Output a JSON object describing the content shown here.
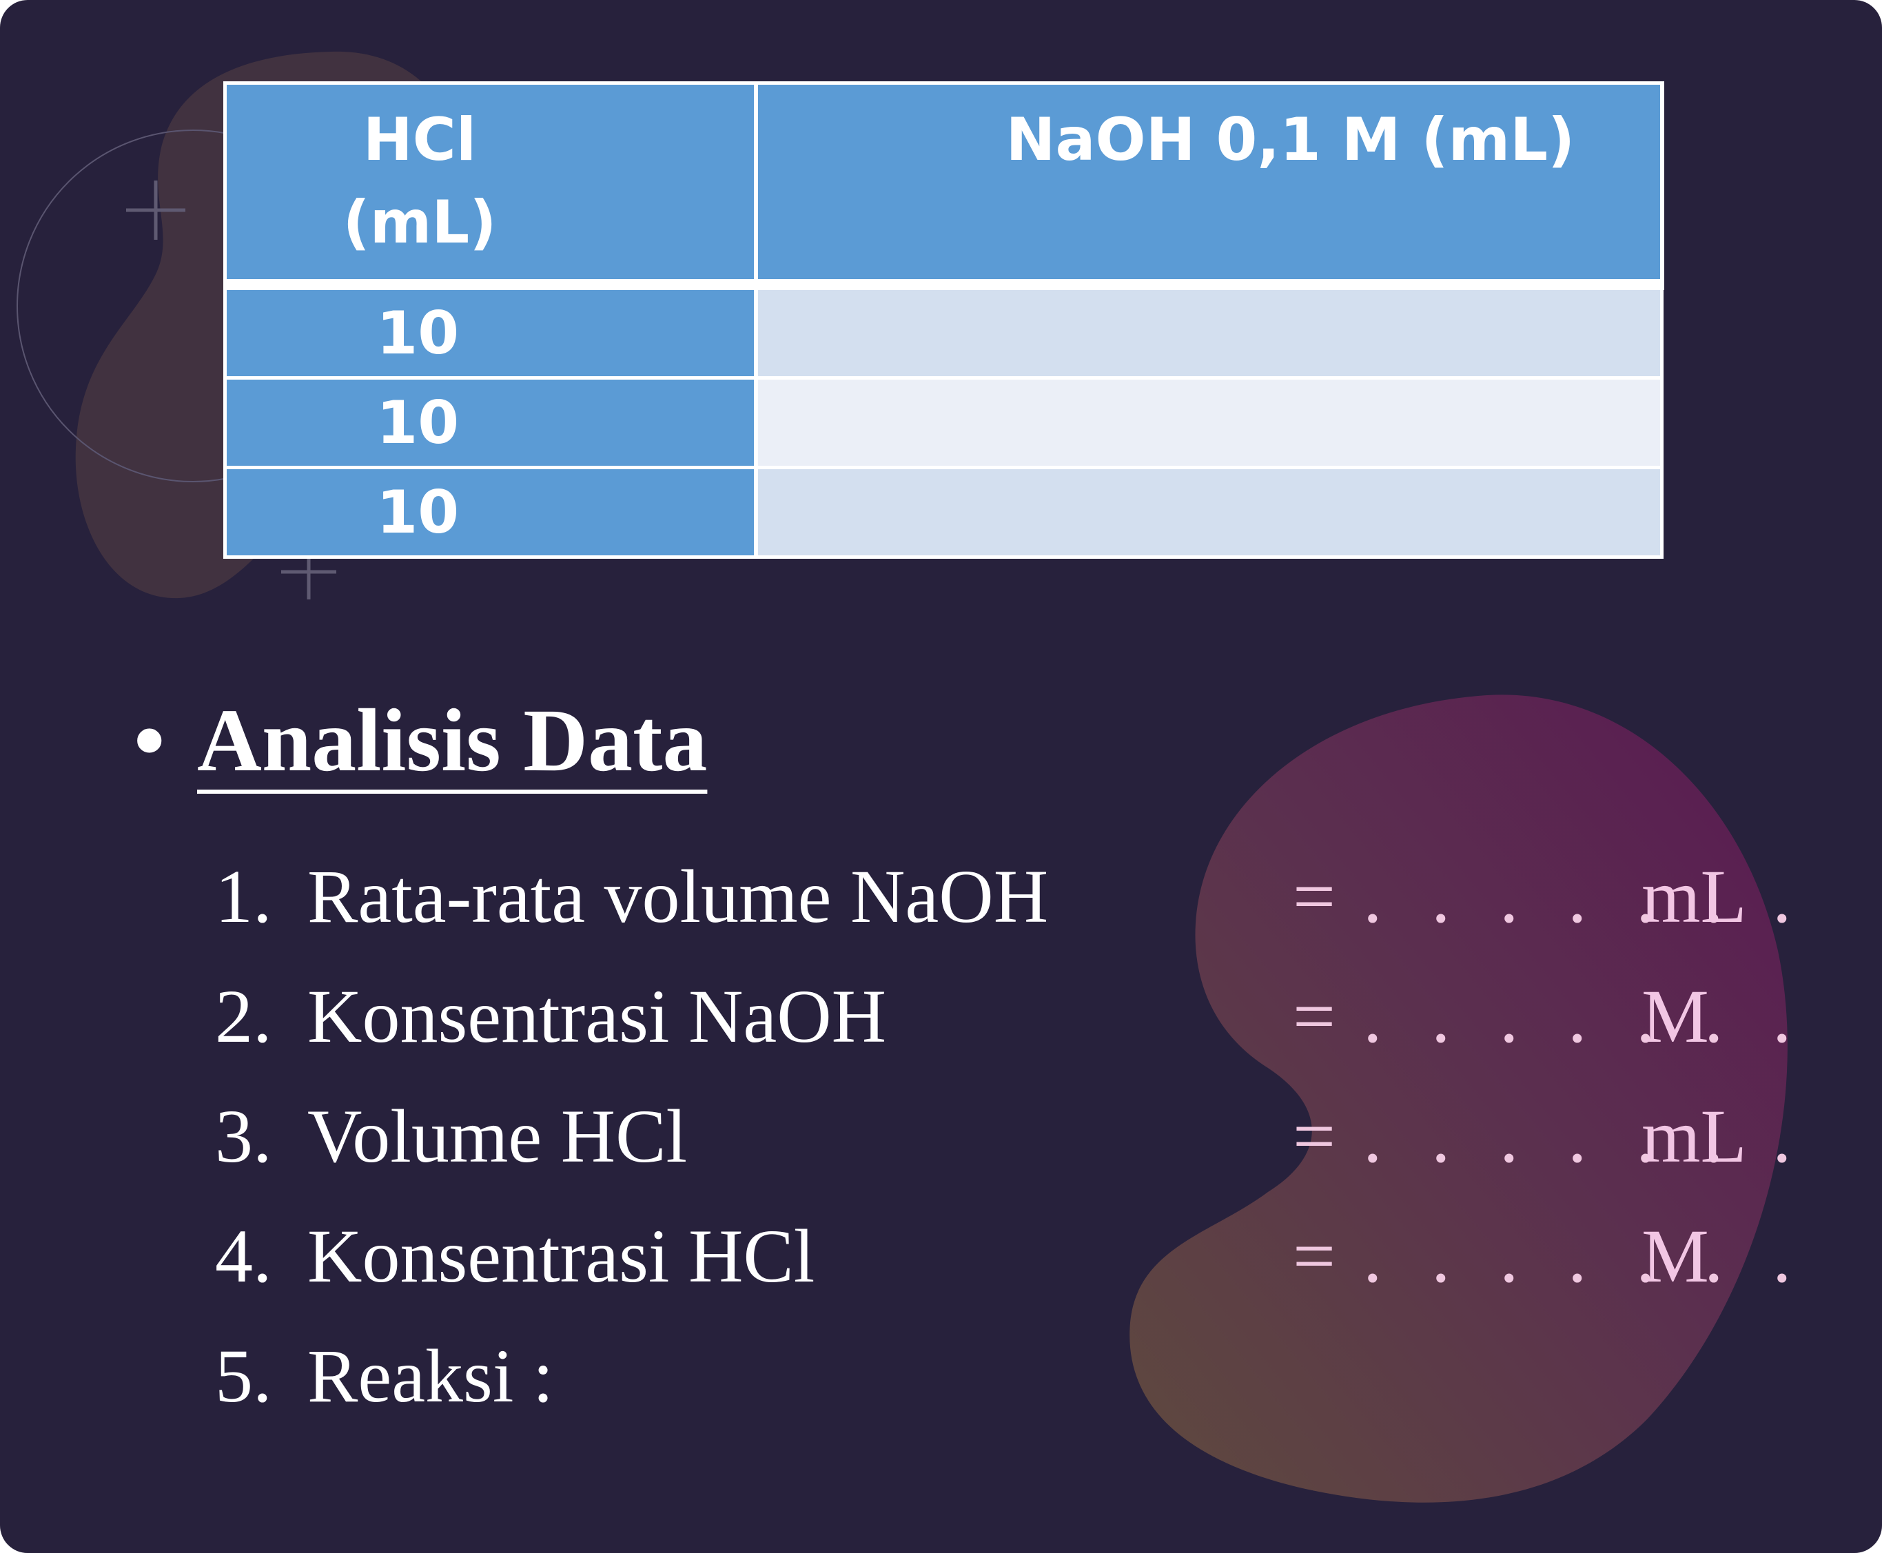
{
  "table": {
    "headers": [
      "HCl (mL)",
      "NaOH 0,1 M (mL)"
    ],
    "header_hcl_lines": [
      "HCl",
      "(mL)"
    ],
    "rows": [
      {
        "hcl": "10",
        "naoh": ""
      },
      {
        "hcl": "10",
        "naoh": ""
      },
      {
        "hcl": "10",
        "naoh": ""
      }
    ]
  },
  "section": {
    "bullet": "•",
    "title": "Analisis Data "
  },
  "items": [
    {
      "number": "1.",
      "label": "Rata-rata volume NaOH",
      "equals": "=",
      "blank": ". . . . . . .",
      "unit": "mL"
    },
    {
      "number": "2.",
      "label": "Konsentrasi NaOH",
      "equals": "=",
      "blank": ". . . . . . .",
      "unit": "M"
    },
    {
      "number": "3.",
      "label": "Volume HCl",
      "equals": "=",
      "blank": ". . . . . . .",
      "unit": "mL"
    },
    {
      "number": "4.",
      "label": "Konsentrasi HCl",
      "equals": "=",
      "blank": ". . . . . . .",
      "unit": "M"
    },
    {
      "number": "5.",
      "label": "Reaksi :"
    }
  ],
  "colors": {
    "background": "#27213c",
    "table_header": "#5b9bd5",
    "table_row_odd": "#d3dfef",
    "table_row_even": "#ebeff7",
    "blob_gradient_start": "#5e4a3e",
    "blob_gradient_end": "#5a1a52"
  },
  "decorations": [
    "blob-top-left",
    "circle-outline",
    "plus-icon",
    "plus-icon",
    "blob-right-gradient"
  ]
}
